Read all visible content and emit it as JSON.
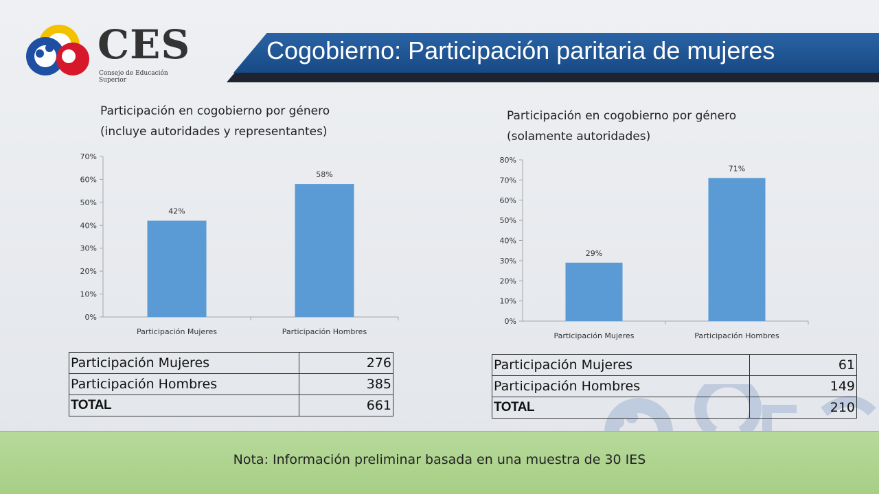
{
  "header": {
    "logo_text": "CES",
    "logo_subtitle": "Consejo de Educación Superior",
    "title": "Cogobierno: Participación paritaria de mujeres"
  },
  "colors": {
    "bar": "#5b9bd5",
    "banner": "#1f5596",
    "note_bg": "#abd38b"
  },
  "charts": [
    {
      "title_line1": "Participación en cogobierno por género",
      "title_line2": "(incluye autoridades y representantes)"
    },
    {
      "title_line1": "Participación en cogobierno por género",
      "title_line2": "(solamente autoridades)"
    }
  ],
  "chart_data": [
    {
      "type": "bar",
      "title": "Participación en cogobierno por género (incluye autoridades y representantes)",
      "categories": [
        "Participación Mujeres",
        "Participación Hombres"
      ],
      "values": [
        0.42,
        0.58
      ],
      "data_labels": [
        "42%",
        "58%"
      ],
      "ylim": [
        0,
        0.7
      ],
      "yticks": [
        "0%",
        "10%",
        "20%",
        "30%",
        "40%",
        "50%",
        "60%",
        "70%"
      ],
      "grid": false,
      "legend": "none"
    },
    {
      "type": "bar",
      "title": "Participación en cogobierno por género (solamente autoridades)",
      "categories": [
        "Participación Mujeres",
        "Participación Hombres"
      ],
      "values": [
        0.29,
        0.71
      ],
      "data_labels": [
        "29%",
        "71%"
      ],
      "ylim": [
        0,
        0.8
      ],
      "yticks": [
        "0%",
        "10%",
        "20%",
        "30%",
        "40%",
        "50%",
        "60%",
        "70%",
        "80%"
      ],
      "grid": false,
      "legend": "none"
    }
  ],
  "tables": [
    {
      "rows": [
        {
          "label": "Participación Mujeres",
          "value": "276"
        },
        {
          "label": "Participación Hombres",
          "value": "385"
        },
        {
          "label": "TOTAL",
          "value": "661"
        }
      ]
    },
    {
      "rows": [
        {
          "label": "Participación Mujeres",
          "value": "61"
        },
        {
          "label": "Participación Hombres",
          "value": "149"
        },
        {
          "label": "TOTAL",
          "value": "210"
        }
      ]
    }
  ],
  "note": "Nota:  Información preliminar basada en una muestra de 30 IES"
}
